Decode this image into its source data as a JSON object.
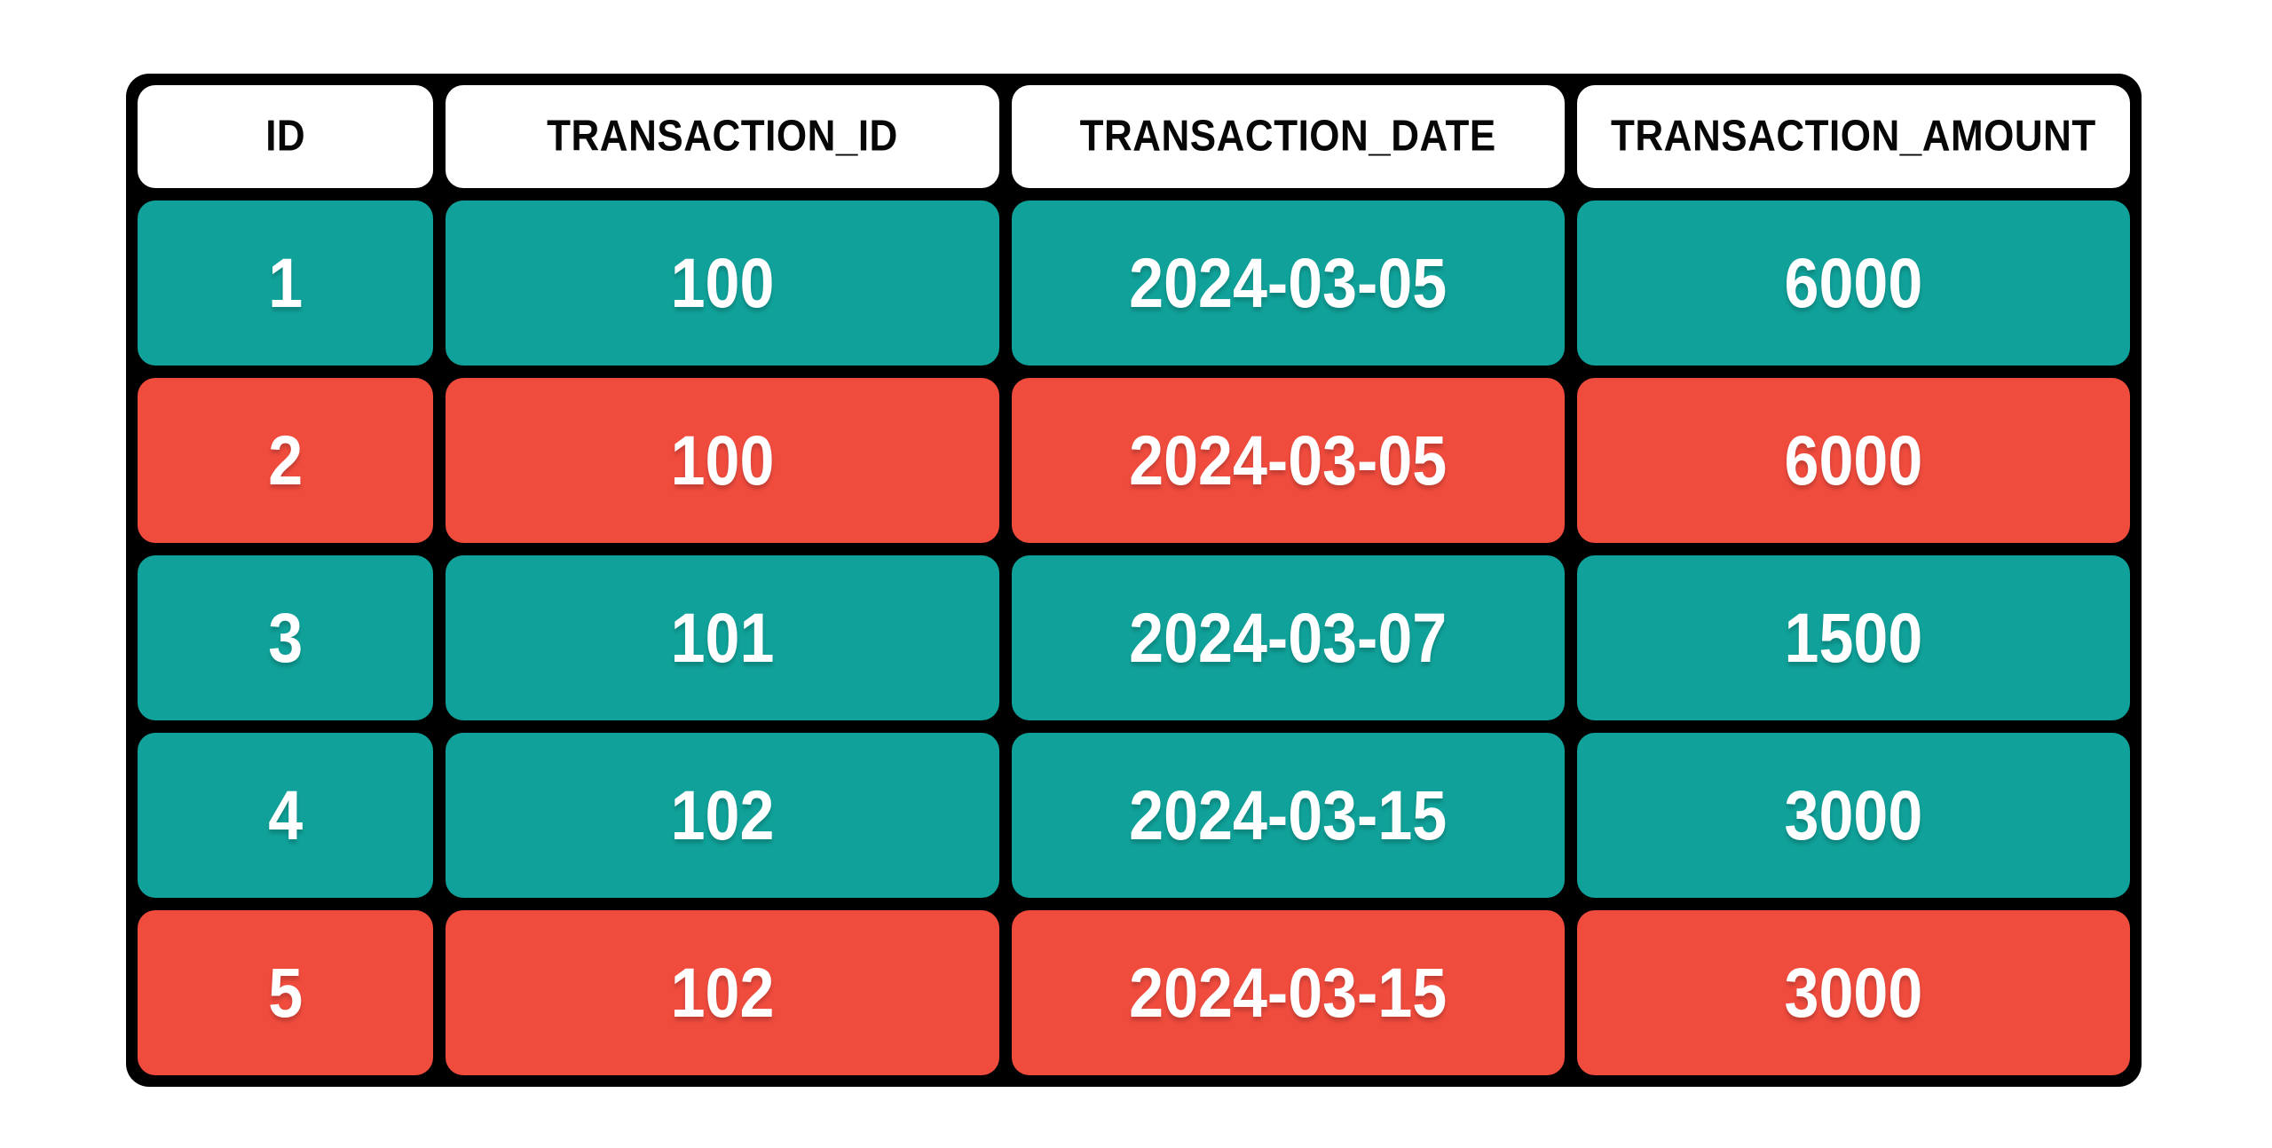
{
  "chart_data": {
    "type": "table",
    "columns": [
      "ID",
      "TRANSACTION_ID",
      "TRANSACTION_DATE",
      "TRANSACTION_AMOUNT"
    ],
    "rows": [
      [
        "1",
        "100",
        "2024-03-05",
        "6000"
      ],
      [
        "2",
        "100",
        "2024-03-05",
        "6000"
      ],
      [
        "3",
        "101",
        "2024-03-07",
        "1500"
      ],
      [
        "4",
        "102",
        "2024-03-15",
        "3000"
      ],
      [
        "5",
        "102",
        "2024-03-15",
        "3000"
      ]
    ],
    "row_colors": [
      "teal",
      "red",
      "teal",
      "teal",
      "red"
    ],
    "legend_position": "none",
    "grid": "off"
  },
  "colors": {
    "teal_row": "#10A29A",
    "red_row": "#F04C3E",
    "header_bg": "#FFFFFF",
    "header_text": "#070707",
    "data_text": "#FFFFFF",
    "frame": "#000000",
    "page_bg": "#FFFFFF"
  }
}
